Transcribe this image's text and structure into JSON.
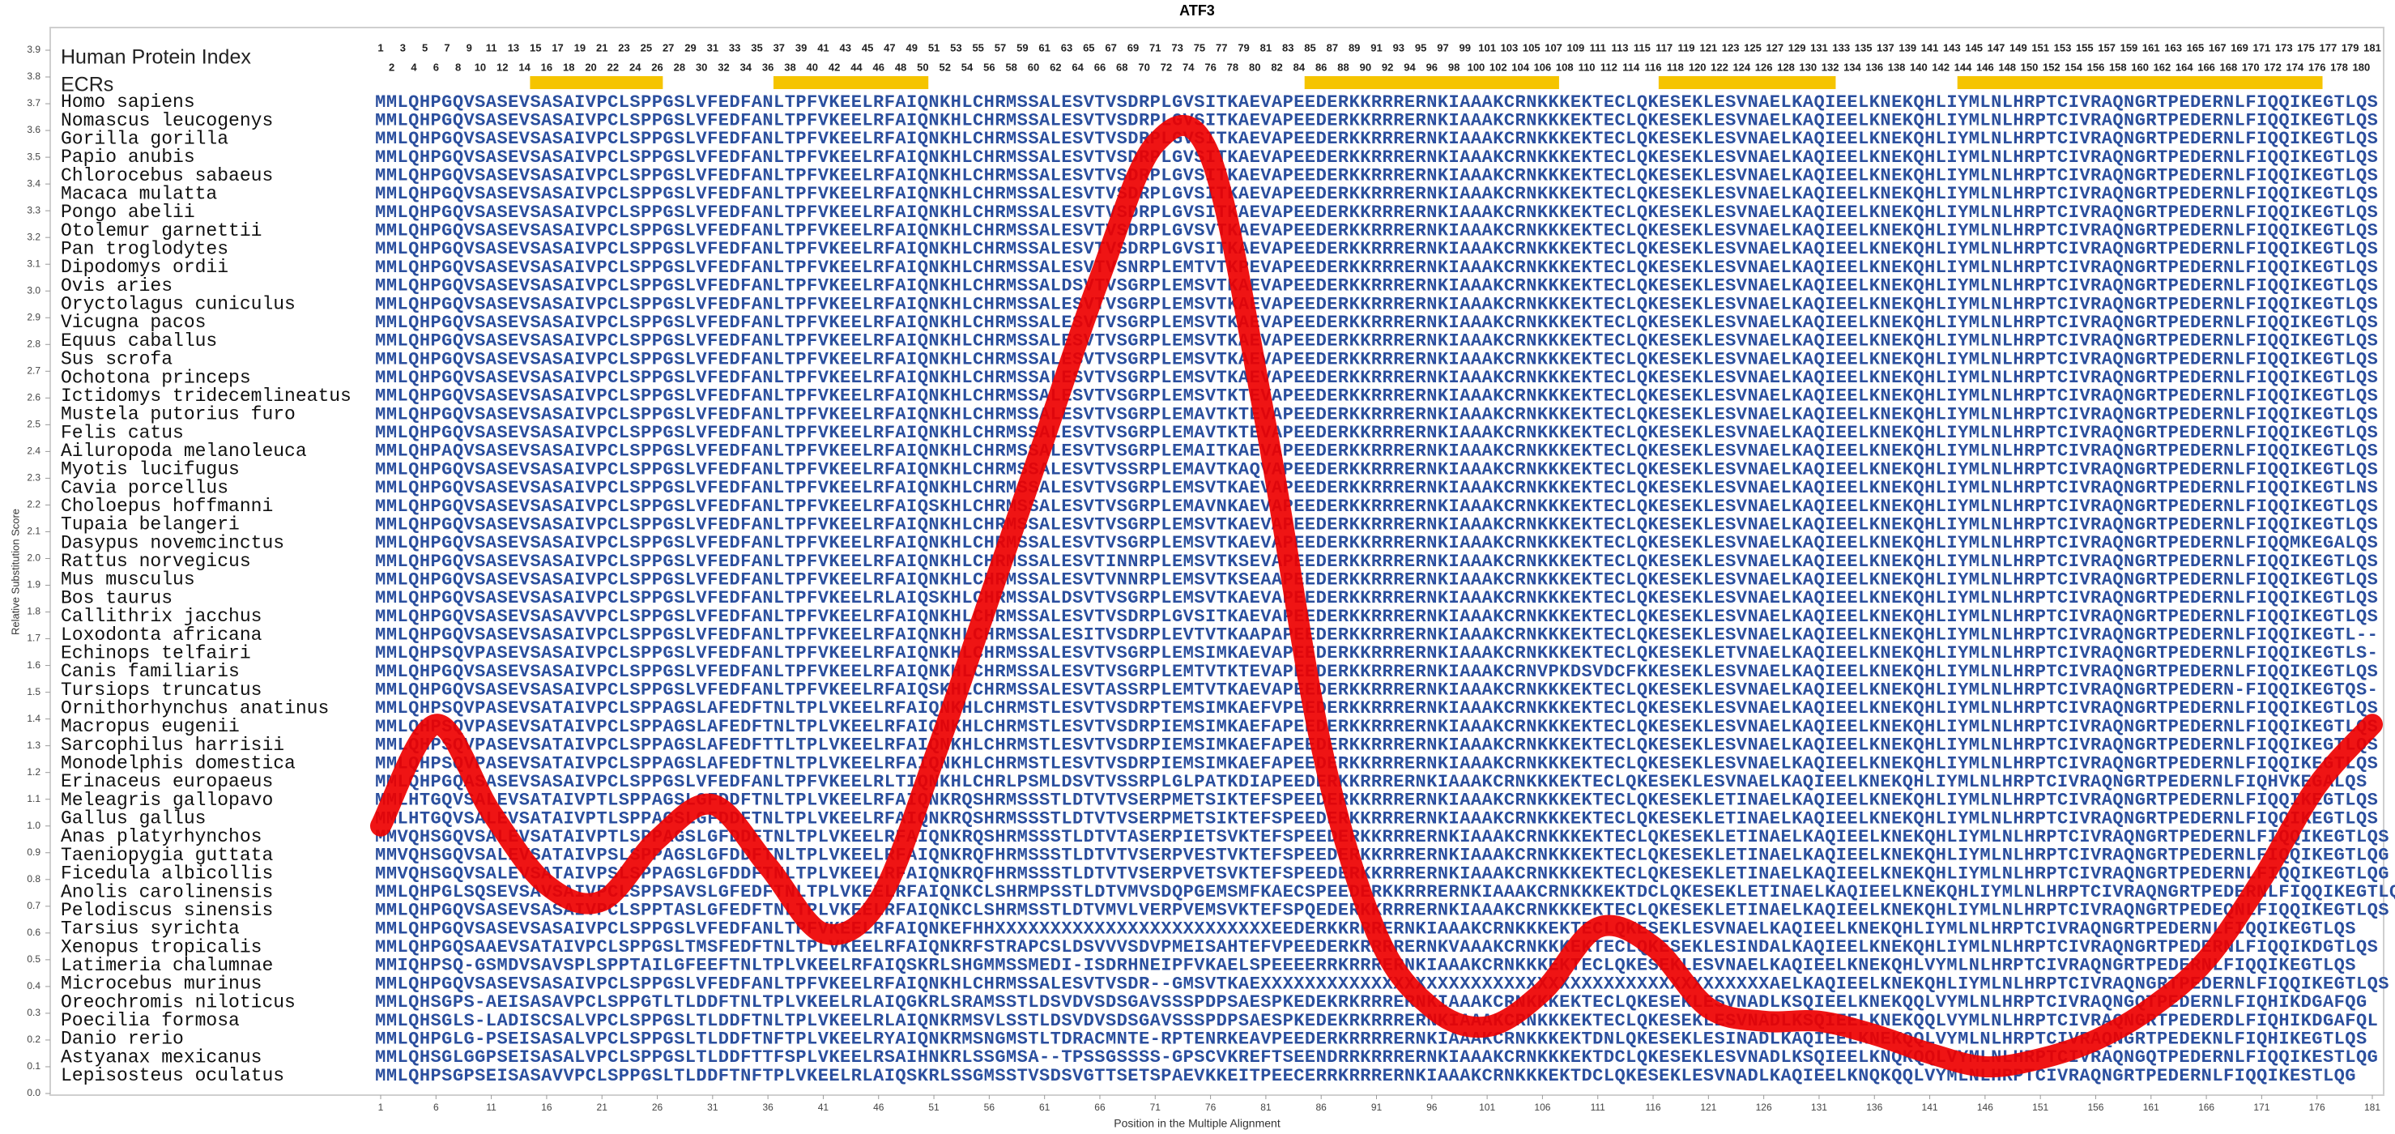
{
  "chart_data": {
    "type": "line",
    "title": "ATF3",
    "xlabel": "Position in the Multiple Alignment",
    "ylabel": "Relative Substitution Score",
    "color": "#ee0000",
    "x": [
      1,
      6,
      11,
      16,
      21,
      26,
      31,
      36,
      41,
      46,
      51,
      56,
      61,
      66,
      71,
      76,
      81,
      86,
      91,
      96,
      101,
      106,
      111,
      116,
      121,
      126,
      131,
      136,
      141,
      146,
      151,
      156,
      161,
      166,
      171,
      176,
      181
    ],
    "values": [
      1.0,
      1.38,
      1.05,
      0.78,
      0.72,
      0.95,
      1.08,
      0.85,
      0.6,
      0.72,
      1.25,
      1.85,
      2.45,
      3.05,
      3.55,
      3.5,
      2.5,
      1.3,
      0.6,
      0.32,
      0.25,
      0.38,
      0.62,
      0.55,
      0.32,
      0.27,
      0.27,
      0.22,
      0.15,
      0.1,
      0.13,
      0.2,
      0.32,
      0.5,
      0.8,
      1.15,
      1.38
    ],
    "xlim": [
      1,
      181
    ],
    "xticks": [
      1,
      6,
      11,
      16,
      21,
      26,
      31,
      36,
      41,
      46,
      51,
      56,
      61,
      66,
      71,
      76,
      81,
      86,
      91,
      96,
      101,
      106,
      111,
      116,
      121,
      126,
      131,
      136,
      141,
      146,
      151,
      156,
      161,
      166,
      171,
      176,
      181
    ],
    "ylim": [
      0,
      3.9
    ],
    "yticks": [
      {
        "value": 0,
        "label": "0.0"
      },
      0.1,
      0.2,
      0.3,
      0.4,
      0.5,
      0.6,
      0.7,
      0.8,
      0.9,
      {
        "value": 1,
        "label": "1.0"
      },
      1.1,
      1.2,
      1.3,
      1.4,
      1.5,
      1.6,
      1.7,
      1.8,
      1.9,
      {
        "value": 2,
        "label": "2.0"
      },
      2.1,
      2.2,
      2.3,
      2.4,
      2.5,
      2.6,
      2.7,
      2.8,
      2.9,
      {
        "value": 3,
        "label": "3.0"
      },
      3.1,
      3.2,
      3.3,
      3.4,
      3.5,
      3.6,
      3.7,
      3.8,
      3.9
    ]
  },
  "alignment": {
    "index_label": "Human Protein Index",
    "ecr_label": "ECRs",
    "ecr_color": "#f5c400",
    "index": [
      1,
      2,
      3,
      4,
      5,
      6,
      7,
      8,
      9,
      10,
      11,
      12,
      13,
      14,
      15,
      16,
      17,
      18,
      19,
      20,
      21,
      22,
      23,
      24,
      25,
      26,
      27,
      28,
      29,
      30,
      31,
      32,
      33,
      34,
      35,
      36,
      37,
      38,
      39,
      40,
      41,
      42,
      43,
      44,
      45,
      46,
      47,
      48,
      49,
      50,
      51,
      52,
      53,
      54,
      55,
      56,
      57,
      58,
      59,
      60,
      61,
      62,
      63,
      64,
      65,
      66,
      67,
      68,
      69,
      70,
      71,
      72,
      73,
      74,
      75,
      76,
      77,
      78,
      79,
      80,
      81,
      82,
      83,
      84,
      85,
      86,
      87,
      88,
      89,
      90,
      91,
      92,
      93,
      94,
      95,
      96,
      97,
      98,
      99,
      100,
      101,
      102,
      103,
      104,
      105,
      106,
      107,
      108,
      109,
      110,
      111,
      112,
      113,
      114,
      115,
      116,
      117,
      118,
      119,
      120,
      121,
      122,
      123,
      124,
      125,
      126,
      127,
      128,
      129,
      130,
      131,
      132,
      133,
      134,
      135,
      136,
      137,
      138,
      139,
      140,
      141,
      142,
      143,
      144,
      145,
      146,
      147,
      148,
      149,
      150,
      151,
      152,
      153,
      154,
      155,
      156,
      157,
      158,
      159,
      160,
      161,
      162,
      163,
      164,
      165,
      166,
      167,
      168,
      169,
      170,
      171,
      172,
      173,
      174,
      175,
      176,
      177,
      178,
      179,
      180,
      181
    ],
    "ecrs": [
      {
        "start": 15,
        "end": 26
      },
      {
        "start": 37,
        "end": 50
      },
      {
        "start": 85,
        "end": 107
      },
      {
        "start": 117,
        "end": 132
      },
      {
        "start": 144,
        "end": 176
      }
    ],
    "rows": [
      {
        "name": "Homo sapiens",
        "sequence": "MMLQHPGQVSASEVSASAIVPCLSPPGSLVFEDFANLTPFVKEELRFAIQNKHLCHRMSSALESVTVSDRPLGVSITKAEVAPEEDERKKRRRERNKIAAAKCRNKKKEKTECLQKESEKLESVNAELKAQIEELKNEKQHLIYMLNLHRPTCIVRAQNGRTPEDERNLFIQQIKEGTLQS"
      },
      {
        "name": "Nomascus leucogenys",
        "sequence": "MMLQHPGQVSASEVSASAIVPCLSPPGSLVFEDFANLTPFVKEELRFAIQNKHLCHRMSSALESVTVSDRPLGVSITKAEVAPEEDERKKRRRERNKIAAAKCRNKKKEKTECLQKESEKLESVNAELKAQIEELKNEKQHLIYMLNLHRPTCIVRAQNGRTPEDERNLFIQQIKEGTLQS"
      },
      {
        "name": "Gorilla gorilla",
        "sequence": "MMLQHPGQVSASEVSASAIVPCLSPPGSLVFEDFANLTPFVKEELRFAIQNKHLCHRMSSALESVTVSDRPLGVSITKAEVAPEEDERKKRRRERNKIAAAKCRNKKKEKTECLQKESEKLESVNAELKAQIEELKNEKQHLIYMLNLHRPTCIVRAQNGRTPEDERNLFIQQIKEGTLQS"
      },
      {
        "name": "Papio anubis",
        "sequence": "MMLQHPGQVSASEVSASAIVPCLSPPGSLVFEDFANLTPFVKEELRFAIQNKHLCHRMSSALESVTVSDRPLGVSITKAEVAPEEDERKKRRRERNKIAAAKCRNKKKEKTECLQKESEKLESVNAELKAQIEELKNEKQHLIYMLNLHRPTCIVRAQNGRTPEDERNLFIQQIKEGTLQS"
      },
      {
        "name": "Chlorocebus sabaeus",
        "sequence": "MMLQHPGQVSASEVSASAIVPCLSPPGSLVFEDFANLTPFVKEELRFAIQNKHLCHRMSSALESVTVSDRPLGVSITKAEVAPEEDERKKRRRERNKIAAAKCRNKKKEKTECLQKESEKLESVNAELKAQIEELKNEKQHLIYMLNLHRPTCIVRAQNGRTPEDERNLFIQQIKEGTLQS"
      },
      {
        "name": "Macaca mulatta",
        "sequence": "MMLQHPGQVSASEVSASAIVPCLSPPGSLVFEDFANLTPFVKEELRFAIQNKHLCHRMSSALESVTVSDRPLGVSITKAEVAPEEDERKKRRRERNKIAAAKCRNKKKEKTECLQKESEKLESVNAELKAQIEELKNEKQHLIYMLNLHRPTCIVRAQNGRTPEDERNLFIQQIKEGTLQS"
      },
      {
        "name": "Pongo abelii",
        "sequence": "MMLQHPGQVSASEVSASAIVPCLSPPGSLVFEDFANLTPFVKEELRFAIQNKHLCHRMSSALESVTVSDRPLGVSITKAEVAPEEDERKKRRRERNKIAAAKCRNKKKEKTECLQKESEKLESVNAELKAQIEELKNEKQHLIYMLNLHRPTCIVRAQNGRTPEDERNLFIQQIKEGTLQS"
      },
      {
        "name": "Otolemur garnettii",
        "sequence": "MMLQHPGQVSASEVSASAIVPCLSPPGSLVFEDFANLTPFVKEELRFAIQNKHLCHRMSSALESVTVSDRPLGVSVTKAEVAPEEDERKKRRRERNKIAAAKCRNKKKEKTECLQKESEKLESVNAELKAQIEELKNEKQHLIYMLNLHRPTCIVRAQNGRTPEDERNLFIQQIKEGTLQS"
      },
      {
        "name": "Pan troglodytes",
        "sequence": "MMLQHPGQVSASEVSASAIVPCLSPPGSLVFEDFANLTPFVKEELRFAIQNKHLCHRMSSALESVTVSDRPLGVSITKAEVAPEEDERKKRRRERNKIAAAKCRNKKKEKTECLQKESEKLESVNAELKAQIEELKNEKQHLIYMLNLHRPTCIVRAQNGRTPEDERNLFIQQIKEGTLQS"
      },
      {
        "name": "Dipodomys ordii",
        "sequence": "MMLQHPGQVSASEVSASAIVPCLSPPGSLVFEDFANLTPFVKEELRFAIQNKHLCHRMSSALESVTVSNRPLEMTVTKPEVAPEEDERKKRRRERNKIAAAKCRNKKKEKTECLQKESEKLESVNAELKAQIEELKNEKQHLIYMLNLHRPTCIVRAQNGRTPEDERNLFIQQIKEGTLQS"
      },
      {
        "name": "Ovis aries",
        "sequence": "MMLQHPGQVSASEVSASAIVPCLSPPGSLVFEDFANLTPFVKEELRFAIQNKHLCHRMSSALDSVTVSGRPLEMSVTKAEVAPEEDERKKRRRERNKIAAAKCRNKKKEKTECLQKESEKLESVNAELKAQIEELKNEKQHLIYMLNLHRPTCIVRAQNGRTPEDERNLFIQQIKEGTLQS"
      },
      {
        "name": "Oryctolagus cuniculus",
        "sequence": "MMLQHPGQVSASEVSASAIVPCLSPPGSLVFEDFANLTPFVKEELRFAIQNKHLCHRMSSALESVTVSGRPLEMSVTKAEVAPEEDERKKRRRERNKIAAAKCRNKKKEKTECLQKESEKLESVNAELKAQIEELKNEKQHLIYMLNLHRPTCIVRAQNGRTPEDERNLFIQQIKEGTLQS"
      },
      {
        "name": "Vicugna pacos",
        "sequence": "MMLQHPGQVSASEVSASAIVPCLSPPGSLVFEDFANLTPFVKEELRFAIQNKHLCHRMSSALESVTVSGRPLEMSVTKAEVAPEEDERKKRRRERNKIAAAKCRNKKKEKTECLQKESEKLESVNAELKAQIEELKNEKQHLIYMLNLHRPTCIVRAQNGRTPEDERNLFIQQIKEGTLQS"
      },
      {
        "name": "Equus caballus",
        "sequence": "MMLQHPGQVSASEVSASAIVPCLSPPGSLVFEDFANLTPFVKEELRFAIQNKHLCHRMSSALESVTVSGRPLEMSVTKAEVAPEEDERKKRRRERNKIAAAKCRNKKKEKTECLQKESEKLESVNAELKAQIEELKNEKQHLIYMLNLHRPTCIVRAQNGRTPEDERNLFIQQIKEGTLQS"
      },
      {
        "name": "Sus scrofa",
        "sequence": "MMLQHPGQVSASEVSASAIVPCLSPPGSLVFEDFANLTPFVKEELRFAIQNKHLCHRMSSALESVTVSGRPLEMSVTKAEVAPEEDERKKRRRERNKIAAAKCRNKKKEKTECLQKESEKLESVNAELKAQIEELKNEKQHLIYMLNLHRPTCIVRAQNGRTPEDERNLFIQQIKEGTLQS"
      },
      {
        "name": "Ochotona princeps",
        "sequence": "MMLQHPGQVSASEVSASAIVPCLSPPGSLVFEDFANLTPFVKEELRFAIQNKHLCHRMSSALESVTVSGRPLEMSVTKAEVAPEEDERKKRRRERNKIAAAKCRNKKKEKTECLQKESEKLESVNAELKAQIEELKNEKQHLIYMLNLHRPTCIVRAQNGRTPEDERNLFIQQIKEGTLQS"
      },
      {
        "name": "Ictidomys tridecemlineatus",
        "sequence": "MMLQHPGQVSASEVSASAIVPCLSPPGSLVFEDFANLTPFVKEELRFAIQNKHLCHRMSSALESVTVSGRPLEMSVTKTEVAPEEDERKKRRRERNKIAAAKCRNKKKEKTECLQKESEKLESVNAELKAQIEELKNEKQHLIYMLNLHRPTCIVRAQNGRTPEDERNLFIQQIKEGTLQS"
      },
      {
        "name": "Mustela putorius furo",
        "sequence": "MMLQHPGQVSASEVSASAIVPCLSPPGSLVFEDFANLTPFVKEELRFAIQNKHLCHRMSSALESVTVSGRPLEMAVTKTEVAPEEDERKKRRRERNKIAAAKCRNKKKEKTECLQKESEKLESVNAELKAQIEELKNEKQHLIYMLNLHRPTCIVRAQNGRTPEDERNLFIQQIKEGTLQS"
      },
      {
        "name": "Felis catus",
        "sequence": "MMLQHPGQVSASEVSASAIVPCLSPPGSLVFEDFANLTPFVKEELRFAIQNKHLCHRMSSALESVTVSGRPLEMAVTKTEVAPEEDERKKRRRERNKIAAAKCRNKKKEKTECLQKESEKLESVNAELKAQIEELKNEKQHLIYMLNLHRPTCIVRAQNGRTPEDERNLFIQQIKEGTLQS"
      },
      {
        "name": "Ailuropoda melanoleuca",
        "sequence": "MMLQHPAQVSASEVSASAIVPCLSPPGSLVFEDFANLTPFVKEELRFAIQNKHLCHRMSSALESVTVSGRPLEMAITKAEVAPEEDERKKRRRERNKIAAAKCRNKKKEKTECLQKESEKLESVNAELKAQIEELKNEKQHLIYMLNLHRPTCIVRAQNGRTPEDERNLFIQQIKEGTLQS"
      },
      {
        "name": "Myotis lucifugus",
        "sequence": "MMLQHPGQVSASEVSASAIVPCLSPPGSLVFEDFANLTPFVKEELRFAIQNKHLCHRMSSALESVTVSSRPLEMAVTKAQVAPEEDERKKRRRERNKIAAAKCRNKKKEKTECLQKESEKLESVNAELKAQIEELKNEKQHLIYMLNLHRPTCIVRAQNGRTPEDERNLFIQQIKEGTLQS"
      },
      {
        "name": "Cavia porcellus",
        "sequence": "MMLQHPGQVSASEVSASAIVPCLSPPGSLVFEDFANLTPFVKEELRFAIQNKHLCHRMSSALESVTVSGRPLEMSVTKAEVAPEEDERKKRRRERNKIAAAKCRNKKKEKTECLQKESEKLESVNAELKAQIEELKNEKQHLIYMLNLHRPTCIVRAQNGRTPEDERNLFIQQIKEGTLNS"
      },
      {
        "name": "Choloepus hoffmanni",
        "sequence": "MMLQHPGQVSASEVSASAIVPCLSPPGSLVFEDFANLTPFVKEELRFAIQSKHLCHRMSSALESVTVSGRPLEMAVNKAEVAPEEDERKKRRRERNKIAAAKCRNKKKEKTECLQKESEKLESVNAELKAQIEELKNEKQHLIYMLNLHRPTCIVRAQNGRTPEDERNLFIQQIKEGTLQS"
      },
      {
        "name": "Tupaia belangeri",
        "sequence": "MMLQHPGQVSASEVSASAIVPCLSPPGSLVFEDFANLTPFVKEELRFAIQNKHLCHRMSSALESVTVSGRPLEMSVTKAEVAPEEDERKKRRRERNKIAAAKCRNKKKEKTECLQKESEKLESVNAELKAQIEELKNEKQHLIYMLNLHRPTCIVRAQNGRTPEDERNLFIQQIKEGTLQS"
      },
      {
        "name": "Dasypus novemcinctus",
        "sequence": "MMLQHPGQVSASEVSASAIVPCLSPPGSLVFEDFANLTPFVKEELRFAIQNKHLCHRMSSALESVTVSGRPLEMSVTKAEVAPEEDERKKRRRERNKIAAAKCRNKKKEKTECLQKESEKLESVNAELKAQIEELKNEKQHLIYMLNLHRPTCIVRAQNGRTPEDERNLFIQQMKEGALQS"
      },
      {
        "name": "Rattus norvegicus",
        "sequence": "MMLQHPGQVSASEVSASAIVPCLSPPGSLVFEDFANLTPFVKEELRFAIQNKHLCHRMSSALESVTINNRPLEMSVTKSEVAPEEDERKKRRRERNKIAAAKCRNKKKEKTECLQKESEKLESVNAELKAQIEELKNEKQHLIYMLNLHRPTCIVRAQNGRTPEDERNLFIQQIKEGTLQS"
      },
      {
        "name": "Mus musculus",
        "sequence": "MMLQHPGQVSASEVSASAIVPCLSPPGSLVFEDFANLTPFVKEELRFAIQNKHLCHRMSSALESVTVNNRPLEMSVTKSEAAPEEDERKKRRRERNKIAAAKCRNKKKEKTECLQKESEKLESVNAELKAQIEELKNEKQHLIYMLNLHRPTCIVRAQNGRTPEDERNLFIQQIKEGTLQS"
      },
      {
        "name": "Bos taurus",
        "sequence": "MMLQHPGQVSASEVSASAIVPCLSPPGSLVFEDFANLTPFVKEELRLAIQSKHLCHRMSSALDSVTVSGRPLEMSVTKAEVAPEEDERKKRRRERNKIAAAKCRNKKKEKTECLQKESEKLESVNAELKAQIEELKNEKQHLIYMLNLHRPTCIVRAQNGRTPEDERNLFIQQIKEGTLQS"
      },
      {
        "name": "Callithrix jacchus",
        "sequence": "MMLQHPGQVSASEVSASAVVPCLSPPGSLVFEDFANLTPFVKEELRFAIQNKHLCHRMSSALESVTVSDRPLGVSITKAEVAPEEDERKKRRRERNKIAAAKCRNKKKEKTECLQKESEKLESVNAELKAQIEELKNEKQHLIYMLNLHRPTCIVRAQNGRTPEDERNLFIQQIKEGTLQS"
      },
      {
        "name": "Loxodonta africana",
        "sequence": "MMLQHPGQVSASEVSASAIVPCLSPPGSLVFEDFANLTPFVKEELRFAIQNKHLCHRMSSALESITVSDRPLEVTVTKAAPAPEEDERKKRRRERNKIAAAKCRNKKKEKTECLQKESEKLESVNAELKAQIEELKNEKQHLIYMLNLHRPTCIVRAQNGRTPEDERNLFIQQIKEGTL--"
      },
      {
        "name": "Echinops telfairi",
        "sequence": "MMLQHPSQVPASEVSASAIVPCLSPPGSLVFEDFANLTPFVKEELRFAIQNKHLCHRMSSALESVTVSGRPLEMSIMKAEVAPEEDERKKRRRERNKIAAAKCRNKKKEKTECLQKESEKLETVNAELKAQIEELKNEKQHLIYMLNLHRPTCIVRAQNGRTPEDERNLFIQQIKEGTLS-"
      },
      {
        "name": "Canis familiaris",
        "sequence": "MMLQHPGQVSASEVSASAIVPCLSPPGSLVFEDFANLTPFVKEELRFAIQNKHLCHRMSSALESVTVSGRPLEMTVTKTEVAPEEDERKKRRRERNKIAAAKCRNVPKDSVDCFKKESEKLESVNAELKAQIEELKNEKQHLIYMLNLHRPTCIVRAQNGRTPEDERNLFIQQIKEGTLQS"
      },
      {
        "name": "Tursiops truncatus",
        "sequence": "MMLQHPGQVSASEVSASAIVPCLSPPGSLVFEDFANLTPFVKEELRFAIQSKHLCHRMSSALESVTASSRPLEMTVTKAEVAPEEDERKKRRRERNKIAAAKCRNKKKEKTECLQKESEKLESVNAELKAQIEELKNEKQHLIYMLNLHRPTCIVRAQNGRTPEDERN-FIQQIKEGTQS-"
      },
      {
        "name": "Ornithorhynchus anatinus",
        "sequence": "MMLQHPSQVPASEVSATAIVPCLSPPAGSLAFEDFTNLTPLVKEELRFAIQNKHLCHRMSTLESVTVSDRPTEMSIMKAEFVPEEDERKKRRRERNKIAAAKCRNKKKEKTECLQKESEKLESVNAELKAQIEELKNEKQHLIYMLNLHRPTCIVRAQNGRTPEDERNLFIQQIKEGTLQS"
      },
      {
        "name": "Macropus eugenii",
        "sequence": "MMLQHPSQVPASEVSATAIVPCLSPPAGSLAFEDFTNLTPLVKEELRFAIQNKHLCHRMSTLESVTVSDRPIEMSIMKAEFAPEEDERKKRRRERNKIAAAKCRNKKKEKTECLQKESEKLESVNAELKAQIEELKNEKQHLIYMLNLHRPTCIVRAQNGRTPEDERNLFIQQIKEGTLQS"
      },
      {
        "name": "Sarcophilus harrisii",
        "sequence": "MMLQHPSQVPASEVSATAIVPCLSPPAGSLAFEDFTTLTPLVKEELRFAIQNKHLCHRMSTLESVTVSDRPIEMSIMKAEFAPEEDERKKRRRERNKIAAAKCRNKKKEKTECLQKESEKLESVNAELKAQIEELKNEKQHLIYMLNLHRPTCIVRAQNGRTPEDERNLFIQQIKEGTLQS"
      },
      {
        "name": "Monodelphis domestica",
        "sequence": "MMLQHPSQVPASEVSATAIVPCLSPPAGSLAFEDFTNLTPLVKEELRFAIQNKHLCHRMSTLESVTVSDRPIEMSIMKAEFAPEEDERKKRRRERNKIAAAKCRNKKKEKTECLQKESEKLESVNAELKAQIEELKNEKQHLIYMLNLHRPTCIVRAQNGRTPEDERNLFIQQIKEGTLQS"
      },
      {
        "name": "Erinaceus europaeus",
        "sequence": "MMLQHPGQASASEVSASAIVPCLSPPGSLVFEDFANLTPFVKEELRLTIQNKHLCHRLPSMLDSVTVSSRPLGLPATKDIAPEEDERKKRRRERNKIAAAKCRNKKKEKTECLQKESEKLESVNAELKAQIEELKNEKQHLIYMLNLHRPTCIVRAQNGRTPEDERNLFIQHVKEGALQS"
      },
      {
        "name": "Meleagris gallopavo",
        "sequence": "MMLHTGQVSALEVSATAIVPTLSPPAGSLGFDDFTNLTPLVKEELRFAIQNKRQSHRMSSSTLDTVTVSERPMETSIKTEFSPEEDERKKRRRERNKIAAAKCRNKKKEKTECLQKESEKLETINAELKAQIEELKNEKQHLIYMLNLHRPTCIVRAQNGRTPEDERNLFIQQIKEGTLQS"
      },
      {
        "name": "Gallus gallus",
        "sequence": "MMLHTGQVSALEVSATAIVPTLSPPAGSLGFDDFTNLTPLVKEELRFAIQNKRQSHRMSSSTLDTVTVSERPMETSIKTEFSPEEDERKKRRRERNKIAAAKCRNKKKEKTECLQKESEKLETINAELKAQIEELKNEKQHLIYMLNLHRPTCIVRAQNGRTPEDERNLFIQQIKEGTLQS"
      },
      {
        "name": "Anas platyrhynchos",
        "sequence": "MMVQHSGQVSALEVSATAIVPTLSPPAGSLGFDDFTNLTPLVKEELRFAIQNKRQSHRMSSSTLDTVTASERPIETSVKTEFSPEEDERKKRRRERNKIAAAKCRNKKKEKTECLQKESEKLETINAELKAQIEELKNEKQHLIYMLNLHRPTCIVRAQNGRTPEDERNLFIQQIKEGTLQS"
      },
      {
        "name": "Taeniopygia guttata",
        "sequence": "MMVQHSGQVSALEVSATAIVPSLSPPAGSLGFDDFTNLTPLVKEELRFAIQNKRQFHRMSSSTLDTVTVSERPVESTVKTEFSPEEDERKKRRRERNKIAAAKCRNKKKEKTECLQKESEKLETINAELKAQIEELKNEKQHLIYMLNLHRPTCIVRAQNGRTPEDERNLFIQQIKEGTLQG"
      },
      {
        "name": "Ficedula albicollis",
        "sequence": "MMVQHSGQVSALEVSATAIVPSLSPPAGSLGFDDFTNLTPLVKEELRFAIQNKRQFHRMSSSTLDTVTVSERPVETSVKTEFSPEEDERKKRRRERNKIAAAKCRNKKKEKTECLQKESEKLETINAELKAQIEELKNEKQHLIYMLNLHRPTCIVRAQNGRTPEDERNLFIQQIKEGTLQG"
      },
      {
        "name": "Anolis carolinensis",
        "sequence": "MMLQHPGLSQSEVSAVSAIVPCLSPPSAVSLGFEDFTNLTPLVKEELRFAIQNKCLSHRMPSSTLDTVMVSDQPGEMSMFKAECSPEEDERKKRRRERNKIAAAKCRNKKKEKTDCLQKESEKLETINAELKAQIEELKNEKQHLIYMLNLHRPTCIVRAQNGRTPEDERNLFIQQIKEGTLQG"
      },
      {
        "name": "Pelodiscus sinensis",
        "sequence": "MMLQHPGQVSASEVSASAIVPCLSPPTASLGFEDFTNLTPLVKEELRFAIQNKCLSHRMSSTLDTVMVLVERPVEMSVKTEFSPQEDERKKRRRERNKIAAAKCRNKKKEKTECLQKESEKLETINAELKAQIEELKNEKQHLIYMLNLHRPTCIVRAQNGRTPEDEQNLFIQQIKEGTLQS"
      },
      {
        "name": "Tarsius syrichta",
        "sequence": "MMLQHPGQVSASEVSASAIVPCLSPPGSLVFEDFANLTPFVKEELRFAIQNKEFHHXXXXXXXXXXXXXXXXXXXXXXXXXEEDERKKRRRERNKIAAAKCRNKKKEKTECLQKESEKLESVNAELKAQIEELKNEKQHLIYMLNLHRPTCIVRAQNGRTPEDERNLFIQQIKEGTLQS"
      },
      {
        "name": "Xenopus tropicalis",
        "sequence": "MMLQHPGQSAAEVSATAIVPCLSPPGSLTMSFEDFTNLTPLVKEELRFAIQNKRFSTRAPCSLDSVVVSDVPMEISAHTEFVPEEDERKRRRRERNKVAAAKCRNKKKEKTECLQKESEKLESINDALKAQIEELKNEKQHLIYMLNLHRPTCIVRAQNGRTPEDERNLFIQQIKDGTLQS"
      },
      {
        "name": "Latimeria chalumnae",
        "sequence": "MMIQHPSQ-GSMDVSAVSPLSPPTAILGFEEFTNLTPLVKEELRFAIQSKRLSHGMMSSMEDI-ISDRHNEIPFVKAELSPEEEERRKRRRERNKIAAAKCRNKKKEKTECLQKESEKLESVNAELKAQIEELKNEKQHLVYMLNLHRPTCIVRAQNGRTPEDERNLFIQQIKEGTLQS"
      },
      {
        "name": "Microcebus murinus",
        "sequence": "MMLQHPGQVSASEVSASAIVPCLSPPGSLVFEDFANLTPFVKEELRFAIQNKHLCHRMSSALESVTVSDR--GMSVTKAEXXXXXXXXXXXXXXXXXXXXXXXXXXXXXXXXXXXXXXXXXXXXXXAELKAQIEELKNEKQHLIYMLNLHRPTCIVRAQNGRTPEDERNLFIQQIKEGTLQS"
      },
      {
        "name": "Oreochromis niloticus",
        "sequence": "MMLQHSGPS-AEISASAVPCLSPPGTLTLDDFTNLTPLVKEELRLAIQGKRLSRAMSSTLDSVDVSDSGAVSSSPDPSAESPKEDEKRKRRRERNKIAAAKCRNKKKEKTECLQKESEKLESVNADLKSQIEELKNEKQQLVYMLNLHRPTCIVRAQNGQTPEDERNLFIQHIKDGAFQG"
      },
      {
        "name": "Poecilia formosa",
        "sequence": "MMLQHSGLS-LADISCSALVPCLSPPGSLTLDDFTNLTPLVKEELRLAIQNKRMSVLSSTLDSVDVSDSGAVSSSPDPSAESPKEDEKRKRRRERNKIAAAKCRNKKKEKTECLQKESEKLESVNADLKSQIEELKNEKQQLVYMLNLHRPTCIVRAQNGRTPEDERDLFIQHIKDGAFQL"
      },
      {
        "name": "Danio rerio",
        "sequence": "MMLQHPGLG-PSEISASALVPCLSPPGSLTLDDFTNFTPLVKEELRYAIQNKRMSNGMSTLTDRACMNTE-RPTENRKEAVPEEDERKRRRRERNKIAAAKCRNKKKEKTDNLQKESEKLESINADLKAQIEELKNEKQQLVYMLNLHRPTCIVRAQNGRTPEDEKNLFIQHIKEGTLQS"
      },
      {
        "name": "Astyanax mexicanus",
        "sequence": "MMLQHSGLGGPSEISASALVPCLSPPGSLTLDDFTTFSPLVKEELRSAIHNKRLSSGMSA--TPSSGSSSS-GPSCVKREFTSEENDRRKRRRERNKIAAAKCRNKKKEKTDCLQKESEKLESVNADLKSQIEELKNQKQQLVYMLNLHRPTCIVRAQNGQTPEDERNLFIQQIKESTLQG"
      },
      {
        "name": "Lepisosteus oculatus",
        "sequence": "MMLQHPSGPSEISASAVVPCLSPPGSLTLDDFTNFTPLVKEELRLAIQSKRLSSGMSSTVSDSVGTTSETSPAEVKKEITPEECERRKRRRERNKIAAAKCRNKKKEKTDCLQKESEKLESVNADLKAQIEELKNQKQQLVYMLNLHRPTCIVRAQNGRTPEDERNLFIQQIKESTLQG"
      }
    ]
  }
}
